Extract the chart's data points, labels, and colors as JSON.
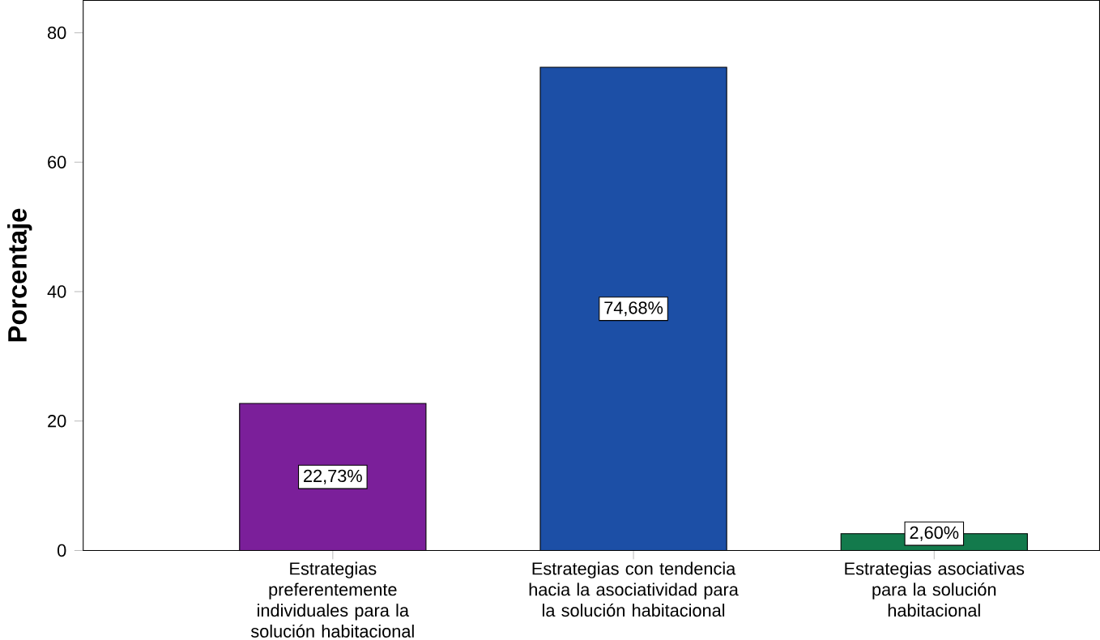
{
  "chart_data": {
    "type": "bar",
    "ylabel": "Porcentaje",
    "categories": [
      "Estrategias preferentemente individuales para la solución habitacional",
      "Estrategias con tendencia hacia la asociatividad para la solución habitacional",
      "Estrategias asociativas para la solución habitacional"
    ],
    "values": [
      22.73,
      74.68,
      2.6
    ],
    "colors": [
      "#7b1f9a",
      "#1c4fa6",
      "#137a4c"
    ],
    "value_labels": [
      "22,73%",
      "74,68%",
      "2,60%"
    ],
    "ylim": [
      0,
      85
    ],
    "yticks": [
      0,
      20,
      40,
      60,
      80
    ],
    "grid": false
  }
}
